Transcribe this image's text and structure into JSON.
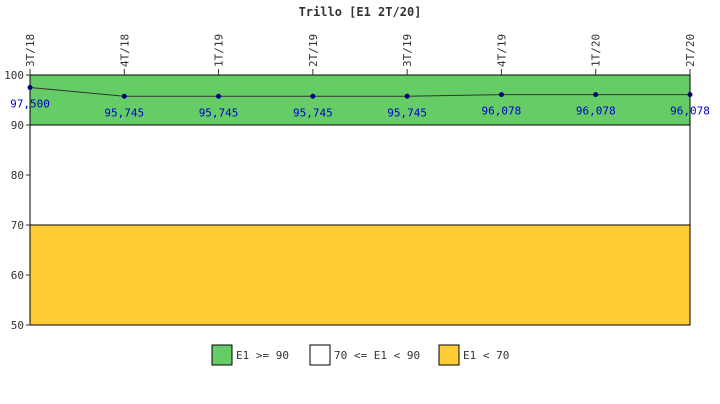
{
  "chart_data": {
    "type": "line",
    "title": "Trillo [E1 2T/20]",
    "categories": [
      "3T/18",
      "4T/18",
      "1T/19",
      "2T/19",
      "3T/19",
      "4T/19",
      "1T/20",
      "2T/20"
    ],
    "series": [
      {
        "values": [
          97.5,
          95.745,
          95.745,
          95.745,
          95.745,
          96.078,
          96.078,
          96.078
        ],
        "value_labels": [
          "97,500",
          "95,745",
          "95,745",
          "95,745",
          "95,745",
          "96,078",
          "96,078",
          "96,078"
        ],
        "color": "#000080"
      }
    ],
    "ylim": [
      50,
      100
    ],
    "yticks": [
      50,
      60,
      70,
      80,
      90,
      100
    ],
    "bands": [
      {
        "from": 90,
        "to": 100,
        "color": "#66cc66",
        "label": "E1 >= 90"
      },
      {
        "from": 70,
        "to": 90,
        "color": "#ffffff",
        "label": "70 <= E1 < 90"
      },
      {
        "from": 50,
        "to": 70,
        "color": "#ffcc33",
        "label": "E1 < 70"
      }
    ],
    "legend_position": "bottom",
    "grid": false
  }
}
